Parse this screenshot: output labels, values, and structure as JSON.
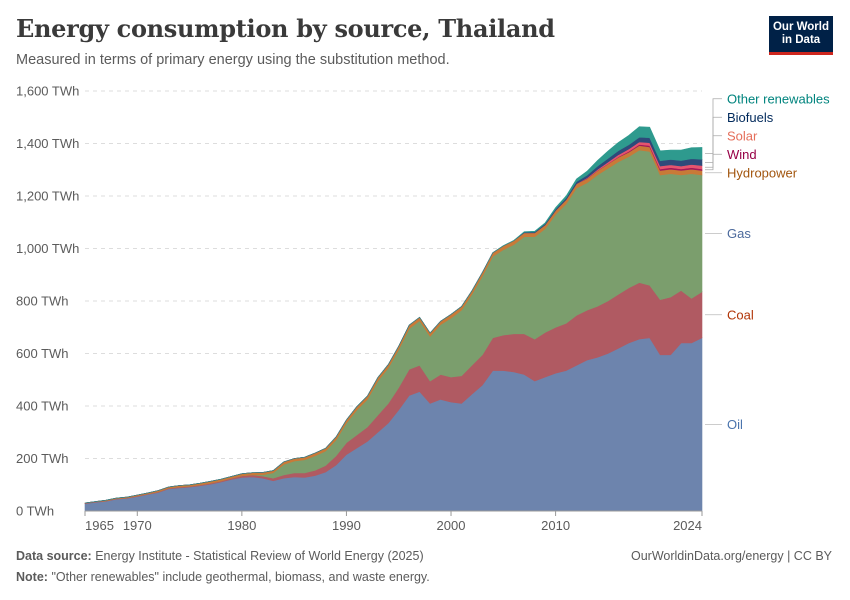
{
  "header": {
    "title": "Energy consumption by source, Thailand",
    "subtitle": "Measured in terms of primary energy using the substitution method."
  },
  "logo": {
    "line1": "Our World",
    "line2": "in Data"
  },
  "footer": {
    "source_label": "Data source:",
    "source_text": "Energy Institute - Statistical Review of World Energy (2025)",
    "note_label": "Note:",
    "note_text": "\"Other renewables\" include geothermal, biomass, and waste energy.",
    "credit": "OurWorldinData.org/energy | CC BY"
  },
  "chart_data": {
    "type": "area",
    "stacked": true,
    "unit": "TWh",
    "ylim": [
      0,
      1600
    ],
    "yticks": [
      0,
      200,
      400,
      600,
      800,
      1000,
      1200,
      1400,
      1600
    ],
    "ytick_labels": [
      "0 TWh",
      "200 TWh",
      "400 TWh",
      "600 TWh",
      "800 TWh",
      "1,000 TWh",
      "1,200 TWh",
      "1,400 TWh",
      "1,600 TWh"
    ],
    "xlim": [
      1965,
      2024
    ],
    "xticks": [
      1965,
      1970,
      1980,
      1990,
      2000,
      2010,
      2024
    ],
    "xtick_labels": [
      "1965",
      "1970",
      "1980",
      "1990",
      "2000",
      "2010",
      "2024"
    ],
    "x": [
      1965,
      1966,
      1967,
      1968,
      1969,
      1970,
      1971,
      1972,
      1973,
      1974,
      1975,
      1976,
      1977,
      1978,
      1979,
      1980,
      1981,
      1982,
      1983,
      1984,
      1985,
      1986,
      1987,
      1988,
      1989,
      1990,
      1991,
      1992,
      1993,
      1994,
      1995,
      1996,
      1997,
      1998,
      1999,
      2000,
      2001,
      2002,
      2003,
      2004,
      2005,
      2006,
      2007,
      2008,
      2009,
      2010,
      2011,
      2012,
      2013,
      2014,
      2015,
      2016,
      2017,
      2018,
      2019,
      2020,
      2021,
      2022,
      2023,
      2024
    ],
    "series": [
      {
        "name": "Oil",
        "color": "#6d84ad",
        "label_color": "#4a74ad",
        "values": [
          28,
          33,
          37,
          45,
          48,
          55,
          63,
          70,
          84,
          88,
          91,
          96,
          102,
          110,
          120,
          128,
          130,
          125,
          115,
          125,
          130,
          128,
          135,
          148,
          175,
          215,
          240,
          265,
          300,
          335,
          385,
          440,
          455,
          410,
          425,
          415,
          410,
          445,
          480,
          535,
          535,
          530,
          520,
          495,
          510,
          525,
          535,
          555,
          575,
          585,
          600,
          620,
          640,
          655,
          660,
          595,
          595,
          640,
          640,
          660
        ]
      },
      {
        "name": "Coal",
        "color": "#b05a62",
        "label_color": "#b13507",
        "values": [
          2,
          2,
          2,
          2,
          2,
          2,
          2,
          3,
          3,
          3,
          3,
          3,
          4,
          4,
          5,
          6,
          7,
          8,
          10,
          12,
          15,
          17,
          20,
          25,
          35,
          45,
          50,
          55,
          65,
          75,
          85,
          100,
          100,
          85,
          95,
          95,
          105,
          110,
          115,
          125,
          135,
          145,
          155,
          160,
          170,
          175,
          180,
          190,
          190,
          195,
          200,
          205,
          210,
          215,
          200,
          210,
          220,
          200,
          170,
          175
        ]
      },
      {
        "name": "Gas",
        "color": "#7b9e6d",
        "label_color": "#4c6a9c",
        "values": [
          0,
          0,
          0,
          0,
          0,
          0,
          0,
          0,
          0,
          0,
          0,
          0,
          0,
          0,
          0,
          0,
          0,
          5,
          20,
          40,
          45,
          50,
          55,
          55,
          60,
          75,
          95,
          105,
          130,
          135,
          145,
          155,
          170,
          170,
          190,
          225,
          250,
          270,
          300,
          310,
          325,
          340,
          370,
          390,
          395,
          430,
          455,
          485,
          485,
          500,
          505,
          505,
          500,
          505,
          510,
          475,
          470,
          440,
          475,
          445
        ]
      },
      {
        "name": "Hydropower",
        "color": "#c87a38",
        "label_color": "#a2560f",
        "values": [
          1,
          1,
          2,
          2,
          3,
          4,
          4,
          5,
          5,
          6,
          6,
          7,
          7,
          7,
          7,
          8,
          9,
          9,
          9,
          10,
          10,
          10,
          11,
          11,
          12,
          12,
          13,
          13,
          13,
          13,
          13,
          13,
          13,
          13,
          13,
          14,
          14,
          14,
          14,
          14,
          15,
          15,
          15,
          15,
          15,
          15,
          16,
          16,
          16,
          16,
          17,
          17,
          17,
          17,
          17,
          17,
          17,
          17,
          17,
          17
        ]
      },
      {
        "name": "Wind",
        "color": "#a2185a",
        "label_color": "#970046",
        "values": [
          0,
          0,
          0,
          0,
          0,
          0,
          0,
          0,
          0,
          0,
          0,
          0,
          0,
          0,
          0,
          0,
          0,
          0,
          0,
          0,
          0,
          0,
          0,
          0,
          0,
          0,
          0,
          0,
          0,
          0,
          0,
          0,
          0,
          0,
          0,
          0,
          0,
          0,
          0,
          0,
          0,
          0,
          0,
          0,
          0,
          0,
          0,
          0,
          1,
          1,
          1,
          2,
          3,
          4,
          5,
          6,
          6,
          6,
          6,
          6
        ]
      },
      {
        "name": "Solar",
        "color": "#e6546e",
        "label_color": "#e56e5a",
        "values": [
          0,
          0,
          0,
          0,
          0,
          0,
          0,
          0,
          0,
          0,
          0,
          0,
          0,
          0,
          0,
          0,
          0,
          0,
          0,
          0,
          0,
          0,
          0,
          0,
          0,
          0,
          0,
          0,
          0,
          0,
          0,
          0,
          0,
          0,
          0,
          0,
          0,
          0,
          0,
          0,
          0,
          0,
          0,
          0,
          0,
          0,
          0,
          1,
          2,
          4,
          6,
          8,
          9,
          10,
          11,
          11,
          11,
          11,
          12,
          13
        ]
      },
      {
        "name": "Biofuels",
        "color": "#2e4a7a",
        "label_color": "#00295b",
        "values": [
          0,
          0,
          0,
          0,
          0,
          0,
          0,
          0,
          0,
          0,
          0,
          0,
          0,
          0,
          0,
          0,
          0,
          0,
          0,
          0,
          0,
          0,
          0,
          0,
          0,
          0,
          0,
          0,
          0,
          0,
          0,
          0,
          0,
          0,
          0,
          0,
          0,
          0,
          0,
          0,
          0,
          0,
          2,
          3,
          4,
          5,
          6,
          8,
          10,
          12,
          14,
          15,
          16,
          18,
          19,
          20,
          20,
          21,
          22,
          24
        ]
      },
      {
        "name": "Other renewables",
        "color": "#2e9a8e",
        "label_color": "#00847e",
        "values": [
          0,
          0,
          0,
          0,
          0,
          0,
          0,
          0,
          0,
          0,
          0,
          0,
          0,
          0,
          0,
          0,
          0,
          0,
          0,
          0,
          0,
          0,
          0,
          0,
          0,
          0,
          0,
          0,
          0,
          0,
          0,
          0,
          0,
          0,
          0,
          0,
          0,
          0,
          0,
          0,
          1,
          1,
          2,
          3,
          4,
          6,
          8,
          10,
          15,
          22,
          28,
          32,
          36,
          40,
          40,
          38,
          36,
          40,
          42,
          45
        ]
      }
    ]
  }
}
